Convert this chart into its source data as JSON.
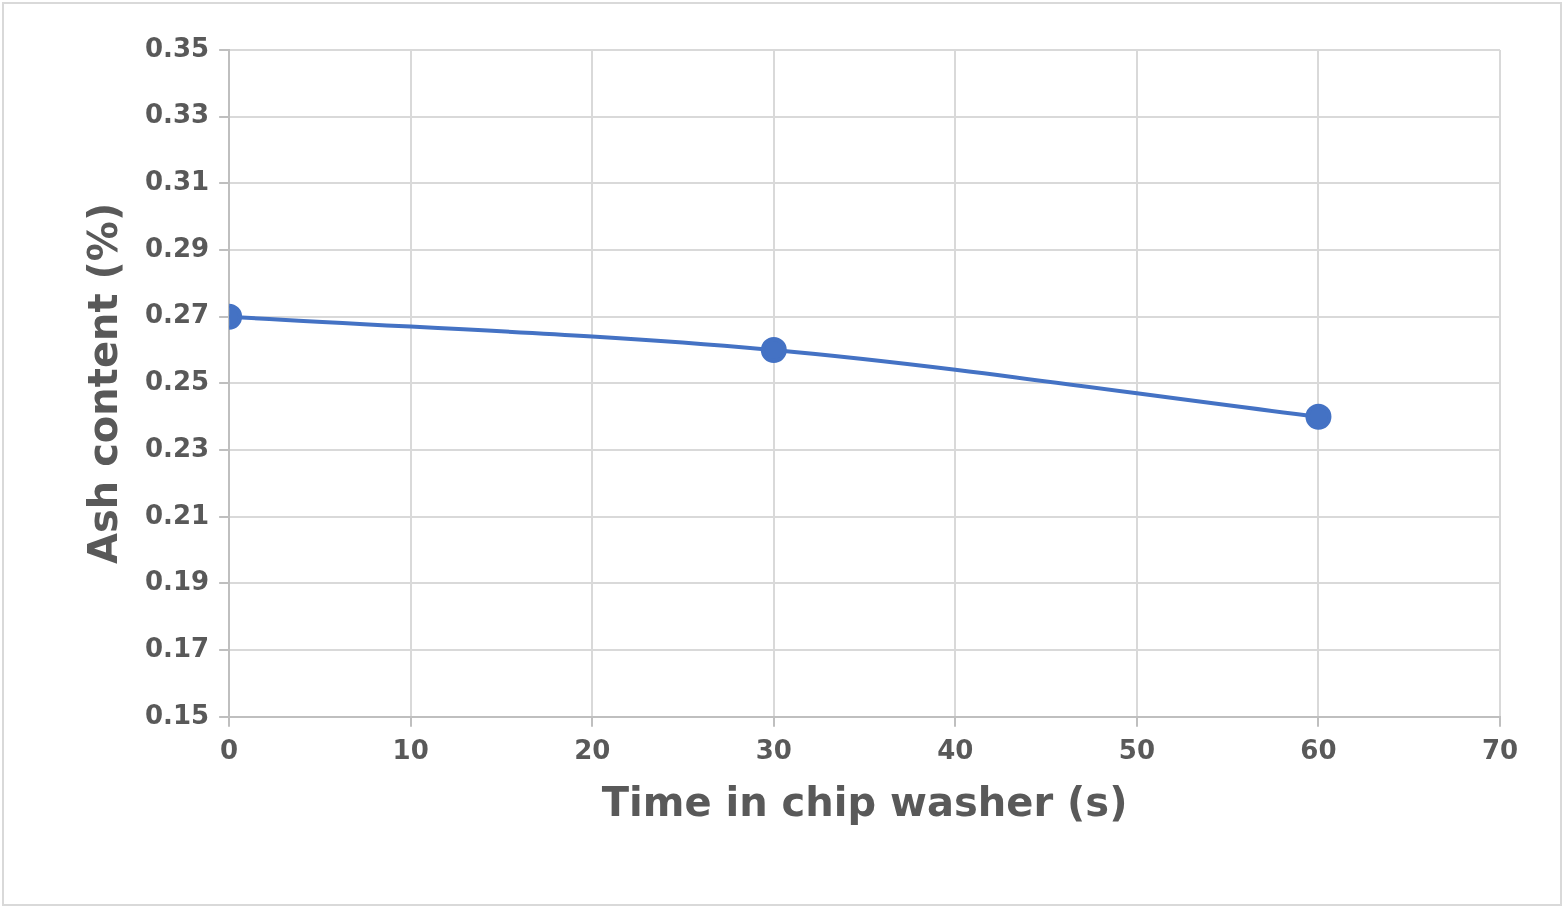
{
  "chart_data": {
    "type": "line",
    "xlabel": "Time in chip washer (s)",
    "ylabel": "Ash content (%)",
    "series": [
      {
        "color": "#4472c4",
        "x": [
          0,
          30,
          60
        ],
        "values": [
          0.27,
          0.26,
          0.24
        ]
      }
    ],
    "xlim": [
      0,
      70
    ],
    "xticks": [
      0,
      10,
      20,
      30,
      40,
      50,
      60,
      70
    ],
    "ylim": [
      0.15,
      0.35
    ],
    "yticks": [
      {
        "value": 0.15,
        "label": "0.15"
      },
      {
        "value": 0.17,
        "label": "0.17"
      },
      {
        "value": 0.19,
        "label": "0.19"
      },
      {
        "value": 0.21,
        "label": "0.21"
      },
      {
        "value": 0.23,
        "label": "0.23"
      },
      {
        "value": 0.25,
        "label": "0.25"
      },
      {
        "value": 0.27,
        "label": "0.27"
      },
      {
        "value": 0.29,
        "label": "0.29"
      },
      {
        "value": 0.31,
        "label": "0.31"
      },
      {
        "value": 0.33,
        "label": "0.33"
      },
      {
        "value": 0.35,
        "label": "0.35"
      }
    ],
    "grid": true,
    "marker": "circle",
    "line_style": "solid",
    "legend": false
  }
}
